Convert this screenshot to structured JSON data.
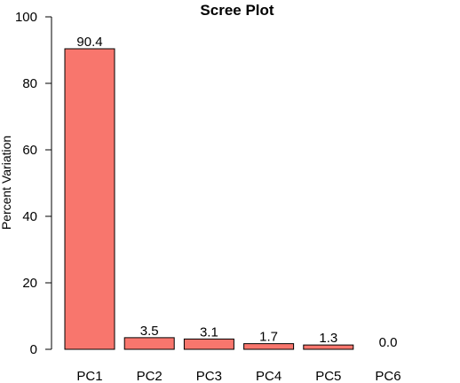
{
  "chart_data": {
    "type": "bar",
    "title": "Scree Plot",
    "xlabel": "",
    "ylabel": "Percent Variation",
    "categories": [
      "PC1",
      "PC2",
      "PC3",
      "PC4",
      "PC5",
      "PC6"
    ],
    "values": [
      90.4,
      3.5,
      3.1,
      1.7,
      1.3,
      0.0
    ],
    "data_labels": [
      "90.4",
      "3.5",
      "3.1",
      "1.7",
      "1.3",
      "0.0"
    ],
    "ylim": [
      0,
      100
    ],
    "yticks": [
      0,
      20,
      40,
      60,
      80,
      100
    ],
    "bar_color": "#f8766d",
    "bar_border_color": "#000000",
    "grid": false,
    "legend": "none"
  }
}
